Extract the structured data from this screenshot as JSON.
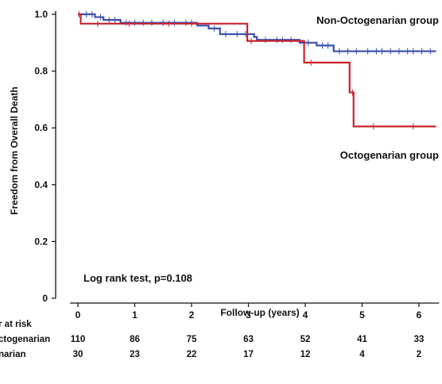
{
  "chart_data": {
    "type": "line",
    "subtype": "kaplan-meier",
    "xlabel": "Follow-up (years)",
    "ylabel": "Freedom from Overall Death",
    "xlim": [
      0,
      6.3
    ],
    "ylim": [
      0,
      1.0
    ],
    "x_ticks": [
      "0",
      "1",
      "2",
      "3",
      "4",
      "5",
      "6"
    ],
    "y_ticks": [
      "0",
      "0.2",
      "0.4",
      "0.6",
      "0.8",
      "1.0"
    ],
    "annotation": "Log rank test, p=0.108",
    "series": [
      {
        "name": "Non-Octogenarian group",
        "color": "#3a4fb0",
        "steps": [
          [
            0,
            1.0
          ],
          [
            0.3,
            0.99
          ],
          [
            0.45,
            0.98
          ],
          [
            0.75,
            0.97
          ],
          [
            2.1,
            0.96
          ],
          [
            2.3,
            0.95
          ],
          [
            2.5,
            0.93
          ],
          [
            3.1,
            0.92
          ],
          [
            3.15,
            0.91
          ],
          [
            3.9,
            0.9
          ],
          [
            4.2,
            0.89
          ],
          [
            4.5,
            0.87
          ],
          [
            6.3,
            0.87
          ]
        ],
        "censor": [
          0.15,
          0.25,
          0.4,
          0.55,
          0.65,
          0.85,
          1.0,
          1.15,
          1.3,
          1.5,
          1.7,
          1.9,
          2.0,
          2.4,
          2.6,
          2.8,
          2.95,
          3.3,
          3.5,
          3.6,
          3.75,
          4.05,
          4.3,
          4.4,
          4.6,
          4.75,
          4.9,
          5.1,
          5.25,
          5.35,
          5.5,
          5.65,
          5.8,
          5.9,
          6.05,
          6.2
        ]
      },
      {
        "name": "Octogenarian group",
        "color": "#c8232c",
        "steps": [
          [
            0,
            1.0
          ],
          [
            0.05,
            0.967
          ],
          [
            2.98,
            0.906
          ],
          [
            3.98,
            0.83
          ],
          [
            4.78,
            0.725
          ],
          [
            4.85,
            0.605
          ],
          [
            6.3,
            0.605
          ]
        ],
        "censor": [
          0.02,
          0.35,
          0.9,
          1.6,
          2.0,
          3.05,
          4.1,
          4.83,
          5.2,
          5.9
        ]
      }
    ],
    "risk_table": {
      "header": "r at risk",
      "time_points": [
        0,
        1,
        2,
        3,
        4,
        5,
        6
      ],
      "rows": [
        {
          "label": "ctogenarian",
          "values": [
            "110",
            "86",
            "75",
            "63",
            "52",
            "41",
            "33"
          ]
        },
        {
          "label": "narian",
          "values": [
            "30",
            "23",
            "22",
            "17",
            "12",
            "4",
            "2"
          ]
        }
      ]
    }
  }
}
